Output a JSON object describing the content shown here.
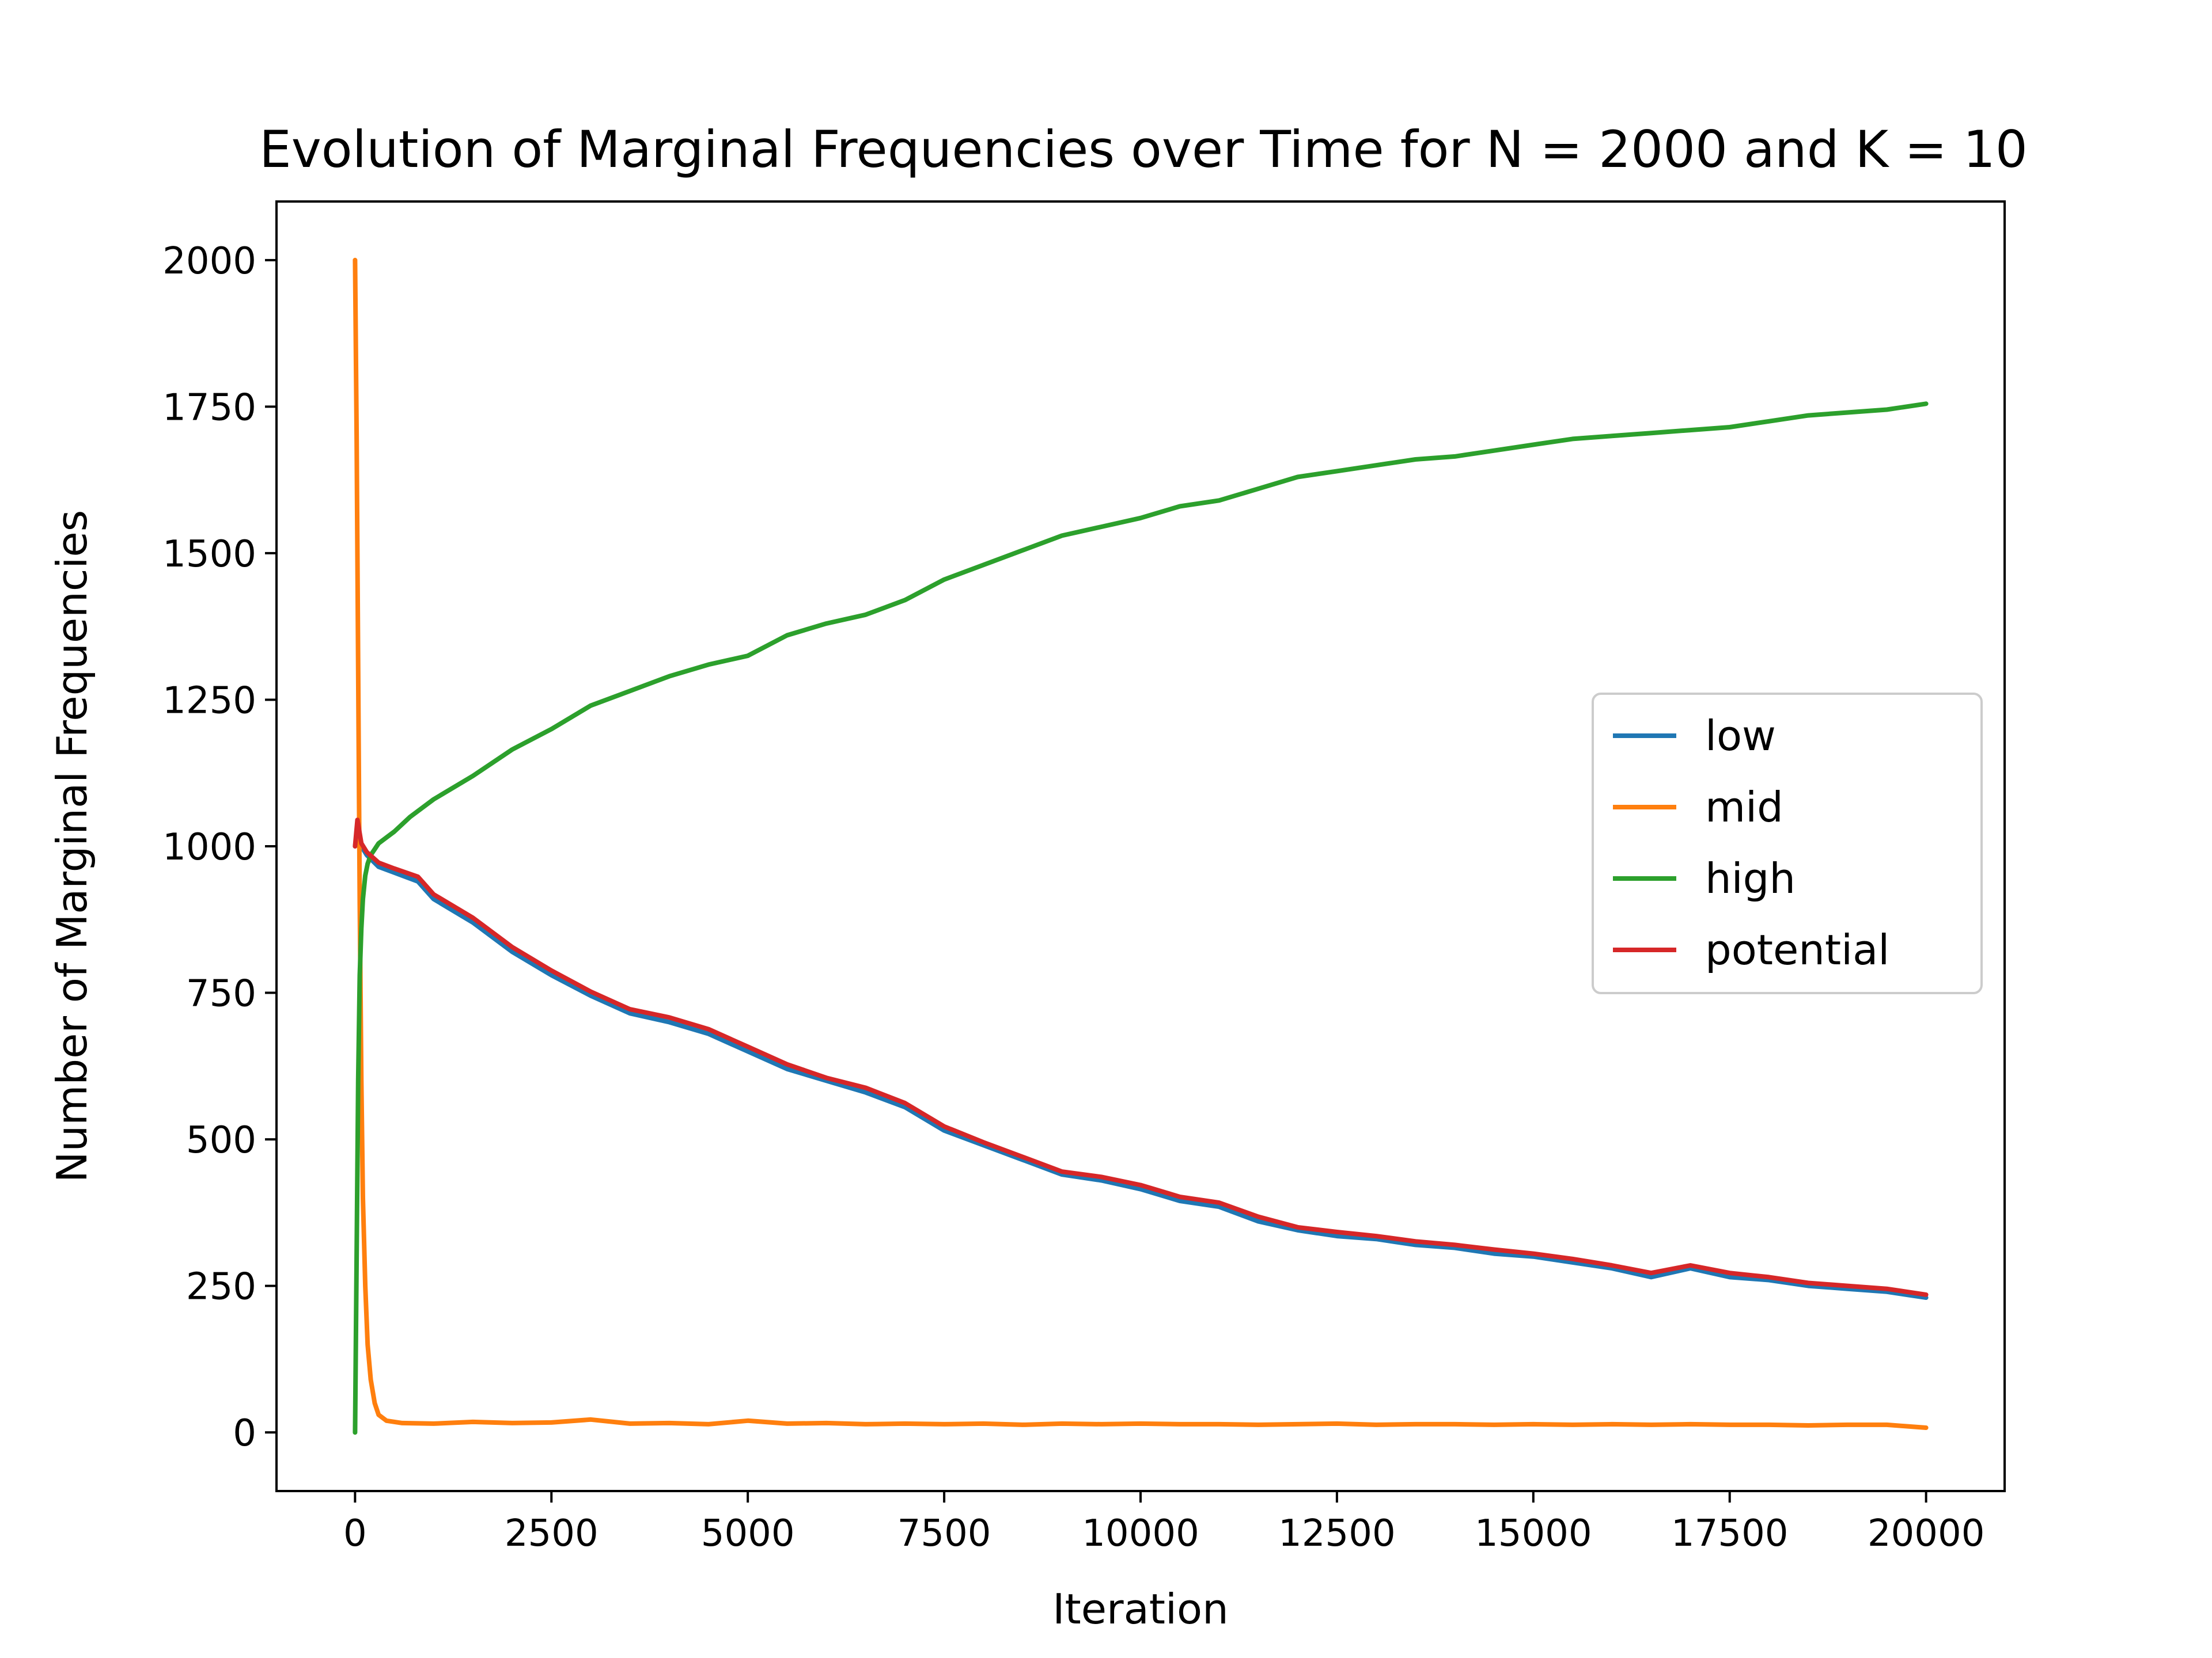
{
  "chart_data": {
    "type": "line",
    "title": "Evolution of Marginal Frequencies over Time for N = 2000 and K = 10",
    "xlabel": "Iteration",
    "ylabel": "Number of Marginal Frequencies",
    "xlim": [
      -1000,
      21000
    ],
    "ylim": [
      -100,
      2100
    ],
    "xticks": [
      0,
      2500,
      5000,
      7500,
      10000,
      12500,
      15000,
      17500,
      20000
    ],
    "yticks": [
      0,
      250,
      500,
      750,
      1000,
      1250,
      1500,
      1750,
      2000
    ],
    "grid": false,
    "legend_position": "center-right",
    "series": [
      {
        "name": "low",
        "color": "#1f77b4",
        "x": [
          0,
          30,
          80,
          150,
          300,
          500,
          800,
          1000,
          1500,
          2000,
          2500,
          3000,
          3500,
          4000,
          4500,
          5000,
          5500,
          6000,
          6500,
          7000,
          7500,
          8000,
          8500,
          9000,
          9500,
          10000,
          10500,
          11000,
          11500,
          12000,
          12500,
          13000,
          13500,
          14000,
          14500,
          15000,
          15500,
          16000,
          16500,
          17000,
          17500,
          18000,
          18500,
          19000,
          19500,
          20000
        ],
        "y": [
          1000,
          1030,
          1000,
          985,
          965,
          955,
          940,
          910,
          870,
          820,
          780,
          745,
          715,
          700,
          680,
          650,
          620,
          600,
          580,
          555,
          515,
          490,
          465,
          440,
          430,
          415,
          395,
          385,
          360,
          345,
          335,
          330,
          320,
          315,
          305,
          300,
          290,
          280,
          265,
          280,
          265,
          260,
          250,
          245,
          240,
          230
        ]
      },
      {
        "name": "mid",
        "color": "#ff7f0e",
        "x": [
          0,
          20,
          40,
          60,
          80,
          100,
          130,
          160,
          200,
          250,
          300,
          400,
          600,
          1000,
          1500,
          2000,
          2500,
          3000,
          3500,
          4000,
          4500,
          5000,
          5500,
          6000,
          6500,
          7000,
          7500,
          8000,
          8500,
          9000,
          9500,
          10000,
          10500,
          11000,
          11500,
          12000,
          12500,
          13000,
          13500,
          14000,
          14500,
          15000,
          15500,
          16000,
          16500,
          17000,
          17500,
          18000,
          18500,
          19000,
          19500,
          20000
        ],
        "y": [
          2000,
          1700,
          1300,
          900,
          600,
          400,
          250,
          150,
          90,
          50,
          30,
          20,
          16,
          15,
          18,
          16,
          17,
          22,
          15,
          16,
          14,
          20,
          15,
          16,
          14,
          15,
          14,
          15,
          13,
          15,
          14,
          15,
          14,
          14,
          13,
          14,
          15,
          13,
          14,
          14,
          13,
          14,
          13,
          14,
          13,
          14,
          13,
          13,
          12,
          13,
          13,
          8
        ]
      },
      {
        "name": "high",
        "color": "#2ca02c",
        "x": [
          0,
          20,
          40,
          60,
          80,
          100,
          130,
          160,
          200,
          250,
          300,
          400,
          500,
          700,
          1000,
          1500,
          2000,
          2500,
          3000,
          3500,
          4000,
          4500,
          5000,
          5500,
          6000,
          6500,
          7000,
          7500,
          8000,
          8500,
          9000,
          9500,
          10000,
          10500,
          11000,
          11500,
          12000,
          12500,
          13000,
          13500,
          14000,
          14500,
          15000,
          15500,
          16000,
          16500,
          17000,
          17500,
          18000,
          18500,
          19000,
          19500,
          20000
        ],
        "y": [
          0,
          300,
          600,
          780,
          860,
          910,
          950,
          970,
          985,
          995,
          1005,
          1015,
          1025,
          1050,
          1080,
          1120,
          1165,
          1200,
          1240,
          1265,
          1290,
          1310,
          1325,
          1360,
          1380,
          1395,
          1420,
          1455,
          1480,
          1505,
          1530,
          1545,
          1560,
          1580,
          1590,
          1610,
          1630,
          1640,
          1650,
          1660,
          1665,
          1675,
          1685,
          1695,
          1700,
          1705,
          1710,
          1715,
          1725,
          1735,
          1740,
          1745,
          1755
        ]
      },
      {
        "name": "potential",
        "color": "#d62728",
        "x": [
          0,
          30,
          80,
          150,
          300,
          500,
          800,
          1000,
          1500,
          2000,
          2500,
          3000,
          3500,
          4000,
          4500,
          5000,
          5500,
          6000,
          6500,
          7000,
          7500,
          8000,
          8500,
          9000,
          9500,
          10000,
          10500,
          11000,
          11500,
          12000,
          12500,
          13000,
          13500,
          14000,
          14500,
          15000,
          15500,
          16000,
          16500,
          17000,
          17500,
          18000,
          18500,
          19000,
          19500,
          20000
        ],
        "y": [
          1000,
          1045,
          1005,
          990,
          972,
          962,
          948,
          918,
          878,
          828,
          788,
          752,
          722,
          708,
          688,
          658,
          628,
          605,
          588,
          562,
          522,
          495,
          470,
          445,
          436,
          422,
          402,
          392,
          368,
          350,
          342,
          335,
          326,
          320,
          312,
          305,
          296,
          285,
          272,
          285,
          272,
          265,
          255,
          250,
          245,
          235
        ]
      }
    ]
  }
}
